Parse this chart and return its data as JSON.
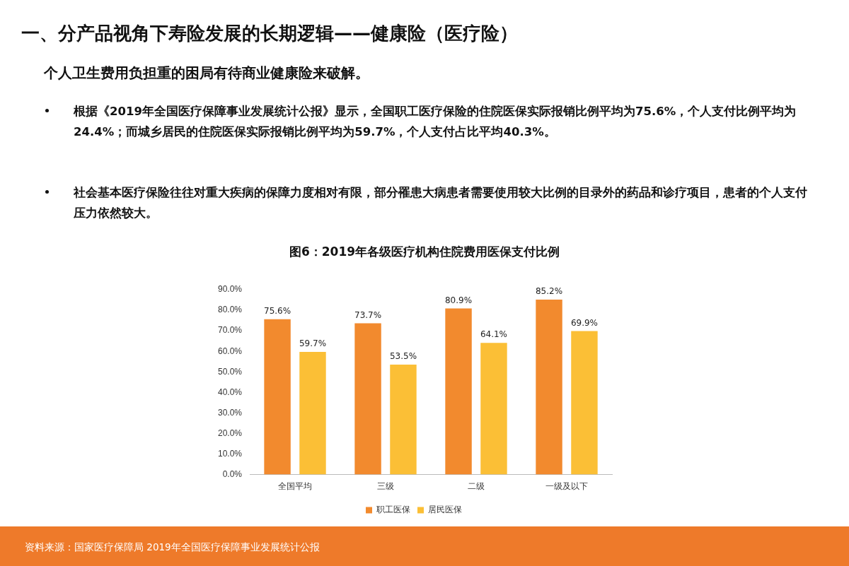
{
  "chart_data": {
    "type": "bar",
    "title": "一、分产品视角下寿险发展的长期逻辑——健康险（医疗险）",
    "subtitle": "个人卫生费用负担重的困局有待商业健康险来破解。",
    "annotations": [
      "根据《2019年全国医疗保障事业发展统计公报》显示，全国职工医疗保险的住院医保实际报销比例平均为75.6%，个人支付比例平均为24.4%；而城乡居民的住院医保实际报销比例平均为59.7%，个人支付占比平均40.3%。",
      "社会基本医疗保险往往对重大疾病的保障力度相对有限，部分罹患大病患者需要使用较大比例的目录外的药品和诊疗项目，患者的个人支付压力依然较大。",
      "图6：2019年各级医疗机构住院费用医保支付比例",
      "资料来源：国家医疗保障局 2019年全国医疗保障事业发展统计公报"
    ],
    "categories": [
      "全国平均",
      "三级",
      "二级",
      "一级及以下"
    ],
    "series": [
      {
        "name": "职工医保",
        "color": "#f28a2e",
        "values": [
          75.6,
          73.7,
          80.9,
          85.2
        ],
        "value_labels": [
          "75.6%",
          "73.7%",
          "80.9%",
          "85.2%"
        ]
      },
      {
        "name": "居民医保",
        "color": "#fbbf36",
        "values": [
          59.7,
          53.5,
          64.1,
          69.9
        ],
        "value_labels": [
          "59.7%",
          "53.5%",
          "64.1%",
          "69.9%"
        ]
      }
    ],
    "ylim": [
      0,
      90
    ],
    "yticks": [
      {
        "value": 0,
        "label": "0.0%"
      },
      {
        "value": 10,
        "label": "10.0%"
      },
      {
        "value": 20,
        "label": "20.0%"
      },
      {
        "value": 30,
        "label": "30.0%"
      },
      {
        "value": 40,
        "label": "40.0%"
      },
      {
        "value": 50,
        "label": "50.0%"
      },
      {
        "value": 60,
        "label": "60.0%"
      },
      {
        "value": 70,
        "label": "70.0%"
      },
      {
        "value": 80,
        "label": "80.0%"
      },
      {
        "value": 90,
        "label": "90.0%"
      }
    ],
    "grid": false,
    "legend": "bottom"
  }
}
